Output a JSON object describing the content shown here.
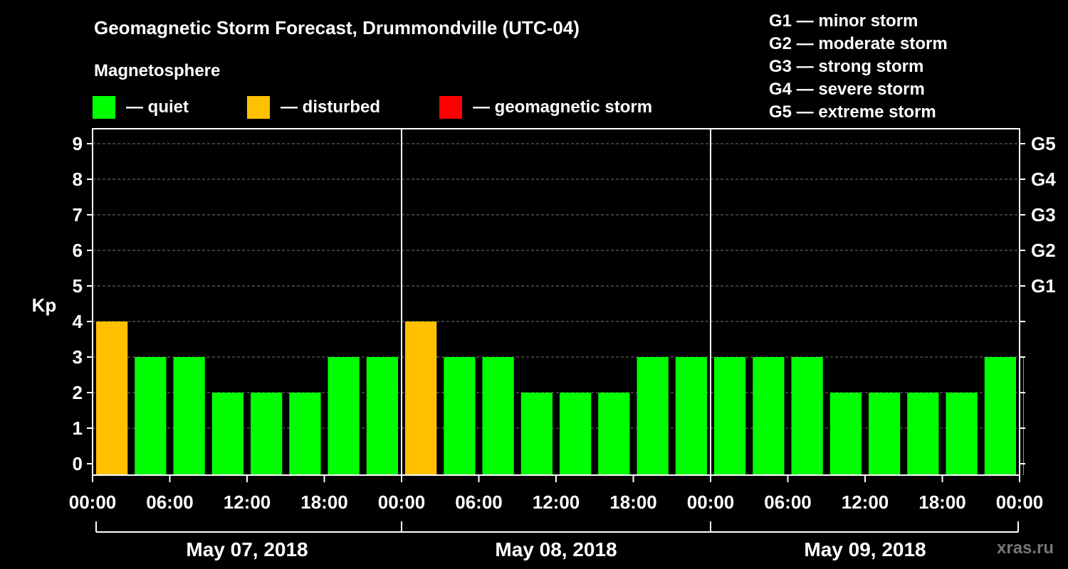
{
  "chart_data": {
    "type": "bar",
    "title": "Geomagnetic Storm Forecast, Drummondville (UTC-04)",
    "ylabel": "Kp",
    "ylim": [
      0,
      9
    ],
    "yticks": [
      "0",
      "1",
      "2",
      "3",
      "4",
      "5",
      "6",
      "7",
      "8",
      "9"
    ],
    "gscale": [
      {
        "kp": 5,
        "label": "G1"
      },
      {
        "kp": 6,
        "label": "G2"
      },
      {
        "kp": 7,
        "label": "G3"
      },
      {
        "kp": 8,
        "label": "G4"
      },
      {
        "kp": 9,
        "label": "G5"
      }
    ],
    "xtick_labels": [
      "00:00",
      "06:00",
      "12:00",
      "18:00",
      "00:00",
      "06:00",
      "12:00",
      "18:00",
      "00:00",
      "06:00",
      "12:00",
      "18:00",
      "00:00"
    ],
    "days": [
      "May 07, 2018",
      "May 08, 2018",
      "May 09, 2018"
    ],
    "interval_hours": 3,
    "values": [
      4,
      3,
      3,
      2,
      2,
      2,
      3,
      3,
      4,
      3,
      3,
      2,
      2,
      2,
      3,
      3,
      3,
      3,
      3,
      2,
      2,
      2,
      2,
      3,
      3
    ],
    "grid": true,
    "legend": {
      "heading": "Magnetosphere",
      "items": [
        {
          "label": "— quiet",
          "color": "#00ff00"
        },
        {
          "label": "— disturbed",
          "color": "#ffc000"
        },
        {
          "label": "— geomagnetic storm",
          "color": "#ff0000"
        }
      ]
    },
    "storm_levels": [
      "G1 — minor storm",
      "G2 — moderate storm",
      "G3 — strong storm",
      "G4 — severe storm",
      "G5 — extreme storm"
    ]
  },
  "watermark": "xras.ru"
}
